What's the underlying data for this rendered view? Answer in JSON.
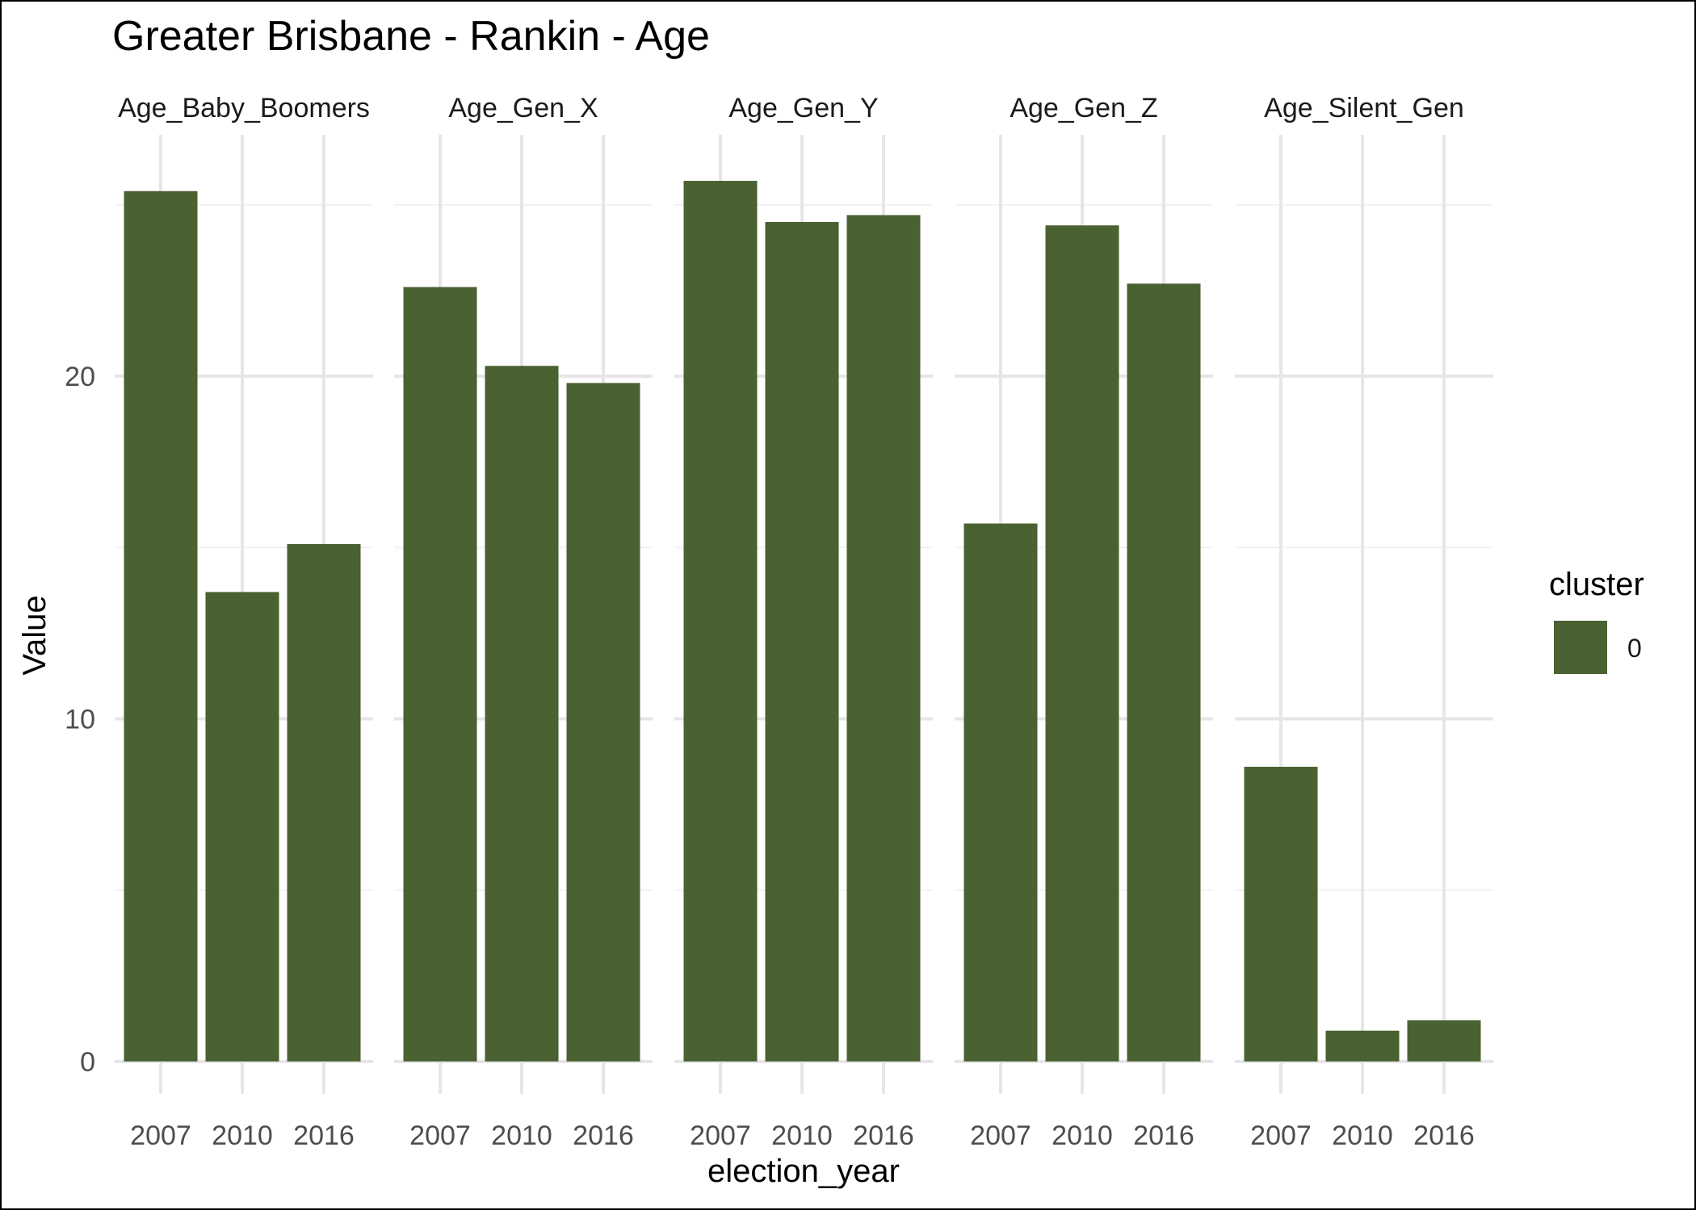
{
  "chart_data": {
    "type": "bar",
    "title": "Greater Brisbane - Rankin - Age",
    "xlabel": "election_year",
    "ylabel": "Value",
    "ylim": [
      0,
      27
    ],
    "y_ticks": [
      0,
      10,
      20
    ],
    "grid": true,
    "legend": {
      "title": "cluster",
      "placement": "right",
      "entries": [
        {
          "label": "0",
          "color": "#4a6131"
        }
      ]
    },
    "categories": [
      "2007",
      "2010",
      "2016"
    ],
    "facets": [
      {
        "name": "Age_Baby_Boomers",
        "values": [
          25.4,
          13.7,
          15.1
        ]
      },
      {
        "name": "Age_Gen_X",
        "values": [
          22.6,
          20.3,
          19.8
        ]
      },
      {
        "name": "Age_Gen_Y",
        "values": [
          25.7,
          24.5,
          24.7
        ]
      },
      {
        "name": "Age_Gen_Z",
        "values": [
          15.7,
          24.4,
          22.7
        ]
      },
      {
        "name": "Age_Silent_Gen",
        "values": [
          8.6,
          0.9,
          1.2
        ]
      }
    ],
    "bar_color": "#4a6131"
  }
}
